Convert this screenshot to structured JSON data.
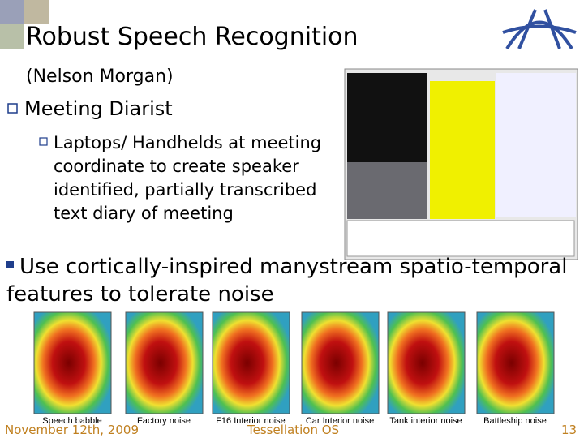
{
  "header": {
    "title": "Robust Speech Recognition",
    "subtitle": "(Nelson Morgan)"
  },
  "bullets": [
    {
      "text": "Meeting Diarist",
      "sub": {
        "lines": [
          "Laptops/ Handhelds at meeting",
          "coordinate to create speaker",
          "identified, partially transcribed",
          "text diary of meeting"
        ]
      }
    },
    {
      "lines": [
        "Use cortically-inspired manystream spatio-temporal",
        "features to tolerate noise"
      ]
    }
  ],
  "figures": {
    "captions": [
      "Speech babble",
      "Factory noise",
      "F16 Interior noise",
      "Car Interior noise",
      "Tank interior noise",
      "Battleship noise"
    ]
  },
  "footer": {
    "date": "November 12th, 2009",
    "center": "Tessellation OS",
    "page": "13"
  }
}
